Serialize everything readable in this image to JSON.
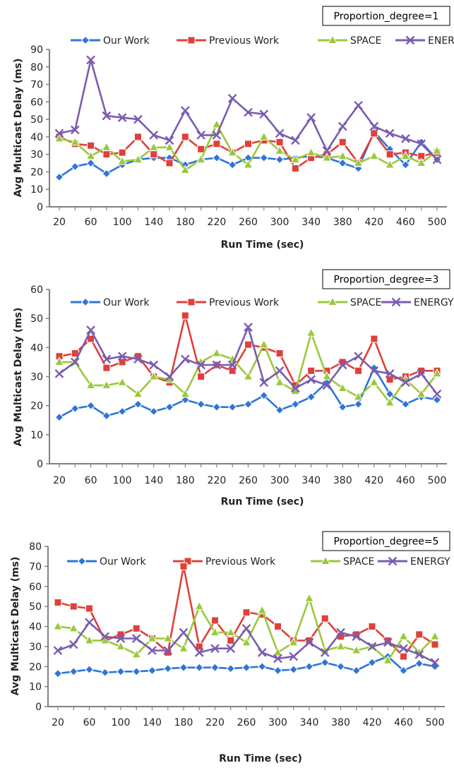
{
  "colors": {
    "our_work": "#2e75d6",
    "previous_work": "#e0403a",
    "space": "#9ac83c",
    "energy": "#7a5cb0",
    "axis": "#808080"
  },
  "chart_data": [
    {
      "type": "line",
      "annotation": "Proportion_degree=1",
      "xlabel": "Run Time (sec)",
      "ylabel": "Avg Multicast Delay (ms)",
      "ylim": [
        0,
        90
      ],
      "yticks": [
        0,
        10,
        20,
        30,
        40,
        50,
        60,
        70,
        80,
        90
      ],
      "x": [
        20,
        40,
        60,
        80,
        100,
        120,
        140,
        160,
        180,
        200,
        220,
        240,
        260,
        280,
        300,
        320,
        340,
        360,
        380,
        400,
        420,
        440,
        460,
        480,
        500
      ],
      "xtick_labels": [
        "20",
        "60",
        "100",
        "140",
        "180",
        "220",
        "260",
        "300",
        "340",
        "380",
        "420",
        "460",
        "500"
      ],
      "legend_placement": "top",
      "series": [
        {
          "name": "Our Work",
          "color_key": "our_work",
          "marker": "diamond",
          "values": [
            17,
            23,
            25,
            19,
            24,
            27,
            28,
            28,
            24,
            27,
            28,
            24,
            28,
            28,
            27,
            28,
            29,
            28,
            25,
            22,
            43,
            33,
            24,
            37,
            27
          ]
        },
        {
          "name": "Previous Work",
          "color_key": "previous_work",
          "marker": "square",
          "values": [
            40,
            36,
            35,
            30,
            31,
            40,
            30,
            25,
            40,
            33,
            36,
            31,
            36,
            38,
            37,
            22,
            28,
            30,
            37,
            25,
            42,
            30,
            31,
            29,
            31
          ]
        },
        {
          "name": "SPACE",
          "color_key": "space",
          "marker": "triangle",
          "values": [
            39,
            37,
            29,
            34,
            26,
            27,
            34,
            34,
            21,
            27,
            47,
            31,
            24,
            40,
            32,
            27,
            31,
            28,
            29,
            25,
            29,
            24,
            29,
            25,
            32
          ]
        },
        {
          "name": "ENERGY",
          "color_key": "energy",
          "marker": "x",
          "values": [
            42,
            44,
            84,
            52,
            51,
            50,
            41,
            38,
            55,
            41,
            41,
            62,
            54,
            53,
            42,
            38,
            51,
            32,
            46,
            58,
            46,
            42,
            39,
            36,
            27
          ]
        }
      ]
    },
    {
      "type": "line",
      "annotation": "Proportion_degree=3",
      "xlabel": "Run Time (sec)",
      "ylabel": "Avg Multicast Delay (ms)",
      "ylim": [
        0,
        60
      ],
      "yticks": [
        0,
        10,
        20,
        30,
        40,
        50,
        60
      ],
      "x": [
        20,
        40,
        60,
        80,
        100,
        120,
        140,
        160,
        180,
        200,
        220,
        240,
        260,
        280,
        300,
        320,
        340,
        360,
        380,
        400,
        420,
        440,
        460,
        480,
        500
      ],
      "xtick_labels": [
        "20",
        "60",
        "100",
        "140",
        "180",
        "220",
        "260",
        "300",
        "340",
        "380",
        "420",
        "460",
        "500"
      ],
      "legend_placement": "top",
      "series": [
        {
          "name": "Our Work",
          "color_key": "our_work",
          "marker": "diamond",
          "values": [
            16,
            19,
            20,
            16.5,
            18,
            20.5,
            18,
            19.5,
            22,
            20.5,
            19.5,
            19.5,
            20.5,
            23.5,
            18.5,
            20.5,
            23,
            28,
            19.5,
            20.5,
            33,
            24,
            20.5,
            23,
            22
          ]
        },
        {
          "name": "Previous Work",
          "color_key": "previous_work",
          "marker": "square",
          "values": [
            37,
            38,
            43,
            33,
            35,
            37,
            30,
            28,
            51,
            30,
            34,
            32,
            41,
            40,
            38,
            27,
            32,
            32,
            35,
            32,
            43,
            29,
            30,
            32,
            32
          ]
        },
        {
          "name": "SPACE",
          "color_key": "space",
          "marker": "triangle",
          "values": [
            35,
            35,
            27,
            27,
            28,
            24,
            30,
            29,
            24,
            35,
            38,
            36,
            30,
            41,
            28,
            25,
            45,
            30,
            26,
            23,
            28,
            21,
            29,
            24,
            31
          ]
        },
        {
          "name": "ENERGY",
          "color_key": "energy",
          "marker": "x",
          "values": [
            31,
            35,
            46,
            36,
            37,
            36,
            34,
            30,
            36,
            34,
            34,
            34,
            47,
            28,
            32,
            26,
            29,
            27,
            34,
            37,
            32,
            31,
            28,
            31,
            24
          ]
        }
      ]
    },
    {
      "type": "line",
      "annotation": "Proportion_degree=5",
      "xlabel": "Run Time (sec)",
      "ylabel": "Avg Multicast Delay (ms)",
      "ylim": [
        0,
        80
      ],
      "yticks": [
        0,
        10,
        20,
        30,
        40,
        50,
        60,
        70,
        80
      ],
      "x": [
        20,
        40,
        60,
        80,
        100,
        120,
        140,
        160,
        180,
        200,
        220,
        240,
        260,
        280,
        300,
        320,
        340,
        360,
        380,
        400,
        420,
        440,
        460,
        480,
        500
      ],
      "xtick_labels": [
        "20",
        "60",
        "100",
        "140",
        "180",
        "220",
        "260",
        "300",
        "340",
        "380",
        "420",
        "460",
        "500"
      ],
      "legend_placement": "top",
      "series": [
        {
          "name": "Our Work",
          "color_key": "our_work",
          "marker": "diamond",
          "values": [
            16.5,
            17.5,
            18.5,
            17,
            17.5,
            17.5,
            18,
            19,
            19.5,
            19.5,
            19.5,
            19,
            19.5,
            20,
            18,
            18.5,
            20,
            22,
            20,
            18,
            22,
            25,
            18,
            21.5,
            20
          ]
        },
        {
          "name": "Previous Work",
          "color_key": "previous_work",
          "marker": "square",
          "values": [
            52,
            50,
            49,
            33,
            36,
            39,
            34,
            27,
            70,
            30,
            43,
            33,
            47,
            46,
            40,
            33,
            33,
            44,
            35,
            36,
            40,
            33,
            25,
            36,
            31
          ]
        },
        {
          "name": "SPACE",
          "color_key": "space",
          "marker": "triangle",
          "values": [
            40,
            39,
            33,
            33,
            30,
            26,
            34,
            34,
            29,
            50,
            37,
            37,
            32,
            48,
            27,
            32,
            54,
            28,
            30,
            28,
            30,
            23,
            35,
            27,
            35
          ]
        },
        {
          "name": "ENERGY",
          "color_key": "energy",
          "marker": "x",
          "values": [
            28,
            31,
            42,
            35,
            34,
            34,
            28,
            28,
            37,
            27,
            29,
            29,
            39,
            27,
            24,
            25,
            32,
            27,
            37,
            35,
            30,
            32,
            29,
            26,
            22
          ]
        }
      ]
    }
  ]
}
